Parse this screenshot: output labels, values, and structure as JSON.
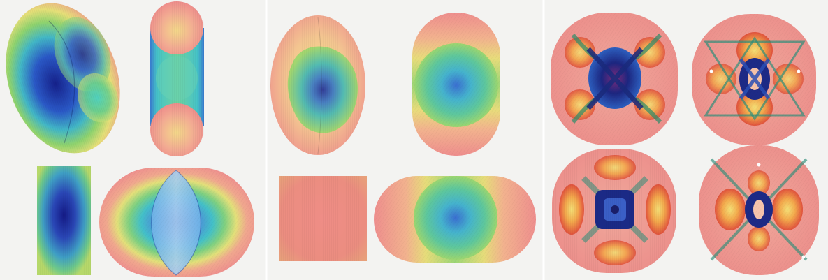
{
  "image": {
    "kind": "photograph",
    "panels": 3
  },
  "colors": {
    "background": "#f3f3f1",
    "pink": "#ef8f8c",
    "yellow": "#e9e27a",
    "green": "#5cc28a",
    "cyan": "#4fb7c8",
    "blue": "#2a49b3",
    "navy": "#172a7a",
    "orange": "#f0a14a",
    "red": "#e2503d"
  }
}
